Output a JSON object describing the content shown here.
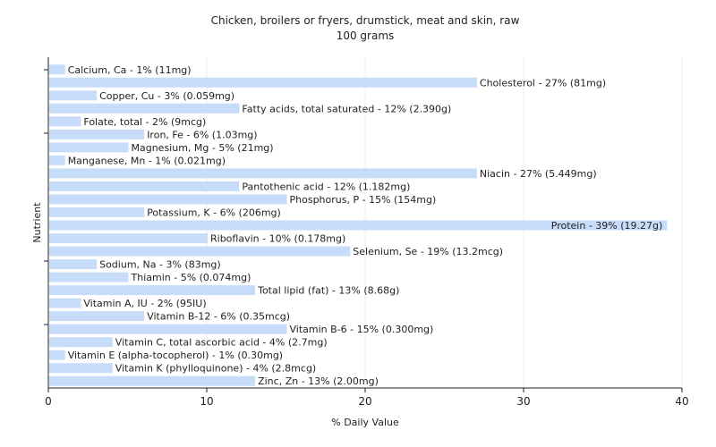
{
  "chart_data": {
    "type": "bar",
    "orientation": "horizontal",
    "title": "Chicken, broilers or fryers, drumstick, meat and skin, raw",
    "subtitle": "100 grams",
    "xlabel": "% Daily Value",
    "ylabel": "Nutrient",
    "xlim": [
      0,
      40
    ],
    "xticks": [
      "0",
      "10",
      "20",
      "30",
      "40"
    ],
    "grid": true,
    "bar_color": "#c6dcf8",
    "categories": [
      "Calcium, Ca",
      "Cholesterol",
      "Copper, Cu",
      "Fatty acids, total saturated",
      "Folate, total",
      "Iron, Fe",
      "Magnesium, Mg",
      "Manganese, Mn",
      "Niacin",
      "Pantothenic acid",
      "Phosphorus, P",
      "Potassium, K",
      "Protein",
      "Riboflavin",
      "Selenium, Se",
      "Sodium, Na",
      "Thiamin",
      "Total lipid (fat)",
      "Vitamin A, IU",
      "Vitamin B-12",
      "Vitamin B-6",
      "Vitamin C, total ascorbic acid",
      "Vitamin E (alpha-tocopherol)",
      "Vitamin K (phylloquinone)",
      "Zinc, Zn"
    ],
    "values": [
      1,
      27,
      3,
      12,
      2,
      6,
      5,
      1,
      27,
      12,
      15,
      6,
      39,
      10,
      19,
      3,
      5,
      13,
      2,
      6,
      15,
      4,
      1,
      4,
      13
    ],
    "labels": [
      "Calcium, Ca - 1% (11mg)",
      "Cholesterol - 27% (81mg)",
      "Copper, Cu - 3% (0.059mg)",
      "Fatty acids, total saturated - 12% (2.390g)",
      "Folate, total - 2% (9mcg)",
      "Iron, Fe - 6% (1.03mg)",
      "Magnesium, Mg - 5% (21mg)",
      "Manganese, Mn - 1% (0.021mg)",
      "Niacin - 27% (5.449mg)",
      "Pantothenic acid - 12% (1.182mg)",
      "Phosphorus, P - 15% (154mg)",
      "Potassium, K - 6% (206mg)",
      "Protein - 39% (19.27g)",
      "Riboflavin - 10% (0.178mg)",
      "Selenium, Se - 19% (13.2mcg)",
      "Sodium, Na - 3% (83mg)",
      "Thiamin - 5% (0.074mg)",
      "Total lipid (fat) - 13% (8.68g)",
      "Vitamin A, IU - 2% (95IU)",
      "Vitamin B-12 - 6% (0.35mcg)",
      "Vitamin B-6 - 15% (0.300mg)",
      "Vitamin C, total ascorbic acid - 4% (2.7mg)",
      "Vitamin E (alpha-tocopherol) - 1% (0.30mg)",
      "Vitamin K (phylloquinone) - 4% (2.8mcg)",
      "Zinc, Zn - 13% (2.00mg)"
    ]
  }
}
